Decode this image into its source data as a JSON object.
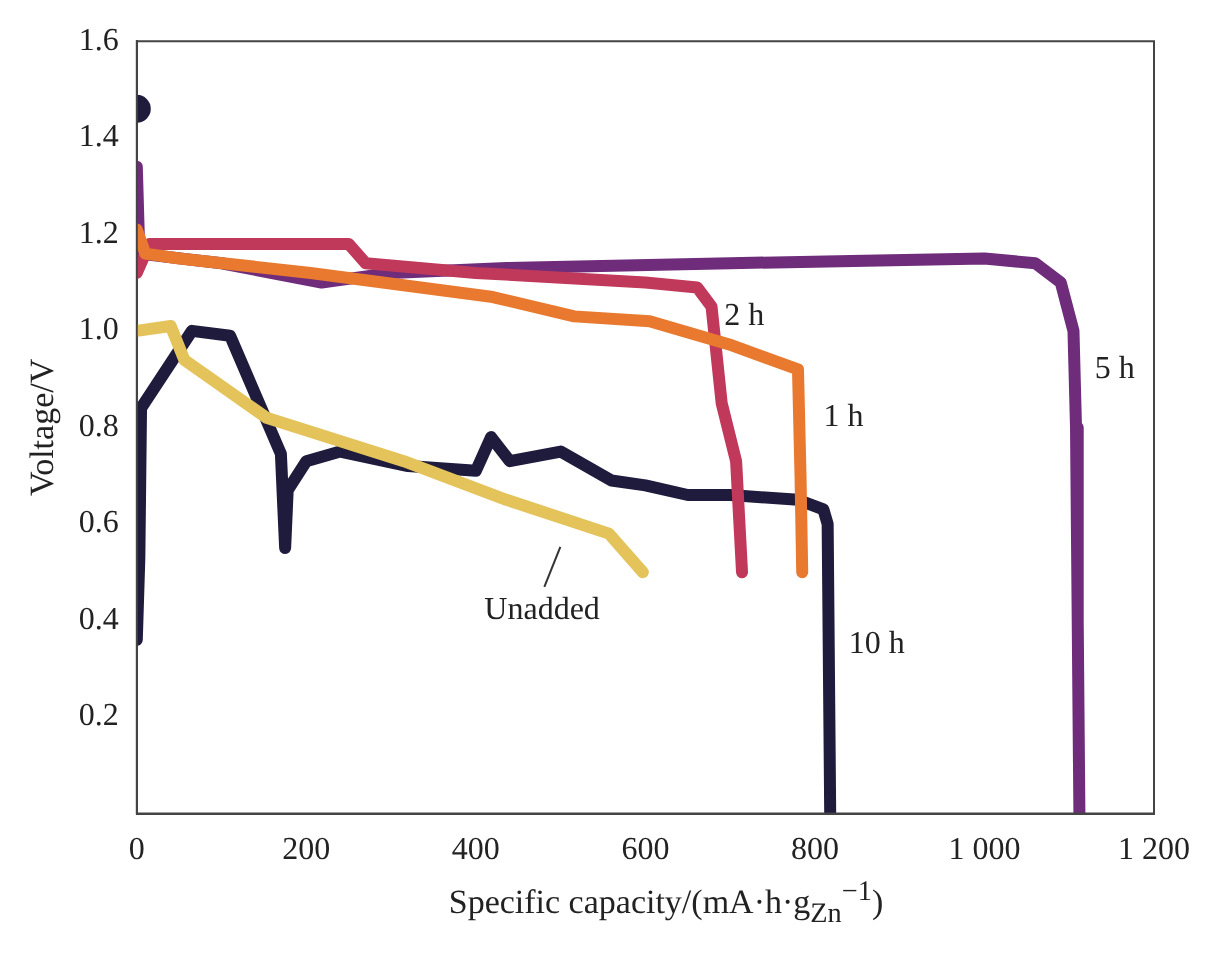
{
  "chart_data": {
    "type": "line",
    "xlabel": "Specific capacity/(mA·h·g$_{Zn}$$^{−1}$)",
    "ylabel": "Voltage/V",
    "xlim": [
      0,
      1200
    ],
    "xticks": [
      0,
      200,
      400,
      600,
      800,
      {
        "value": 1000,
        "label": "1 000"
      },
      {
        "value": 1200,
        "label": "1 200"
      }
    ],
    "ylim": [
      0,
      1.6
    ],
    "yticks": [
      0.2,
      0.4,
      0.6,
      0.8,
      {
        "value": 1.0,
        "label": "1.0"
      },
      1.2,
      1.4,
      1.6
    ],
    "grid": false,
    "legend": false,
    "marker": "none",
    "line_style": "solid",
    "series": [
      {
        "name": "Unadded",
        "color": "#e3c35a",
        "x": [
          0,
          40,
          56,
          153,
          315,
          436,
          557,
          597
        ],
        "values": [
          1.0,
          1.01,
          0.94,
          0.82,
          0.73,
          0.65,
          0.58,
          0.5
        ]
      },
      {
        "name": "1 h",
        "color": "#e8792f",
        "x": [
          0,
          10,
          50,
          205,
          420,
          516,
          605,
          702,
          780,
          783,
          785
        ],
        "values": [
          1.21,
          1.16,
          1.15,
          1.12,
          1.07,
          1.03,
          1.02,
          0.97,
          0.92,
          0.7,
          0.5
        ]
      },
      {
        "name": "2 h",
        "color": "#c0395a",
        "x": [
          0,
          15,
          250,
          270,
          400,
          600,
          661,
          678,
          690,
          707,
          714
        ],
        "values": [
          1.12,
          1.18,
          1.18,
          1.14,
          1.12,
          1.1,
          1.09,
          1.05,
          0.85,
          0.73,
          0.5
        ]
      },
      {
        "name": "5 h",
        "color": "#6e2c7a",
        "x": [
          0,
          3,
          100,
          218,
          300,
          436,
          700,
          1000,
          1060,
          1090,
          1105,
          1108,
          1110,
          1112
        ],
        "values": [
          1.34,
          1.16,
          1.14,
          1.1,
          1.12,
          1.13,
          1.14,
          1.15,
          1.14,
          1.1,
          1.0,
          0.8,
          0.4,
          0
        ]
      },
      {
        "name": "10 h",
        "color": "#1e1b3c",
        "x": [
          0,
          3,
          5,
          65,
          110,
          170,
          175,
          178,
          200,
          240,
          320,
          400,
          418,
          440,
          500,
          560,
          600,
          650,
          700,
          780,
          810,
          815,
          818
        ],
        "values": [
          0.36,
          0.53,
          0.84,
          1.0,
          0.99,
          0.745,
          0.55,
          0.67,
          0.73,
          0.75,
          0.72,
          0.71,
          0.78,
          0.73,
          0.75,
          0.69,
          0.68,
          0.66,
          0.66,
          0.65,
          0.63,
          0.6,
          0
        ]
      },
      {
        "type": "scatter",
        "marker": "circle",
        "color": "#1e1b3c",
        "x": [
          0
        ],
        "values": [
          1.46
        ]
      }
    ]
  }
}
